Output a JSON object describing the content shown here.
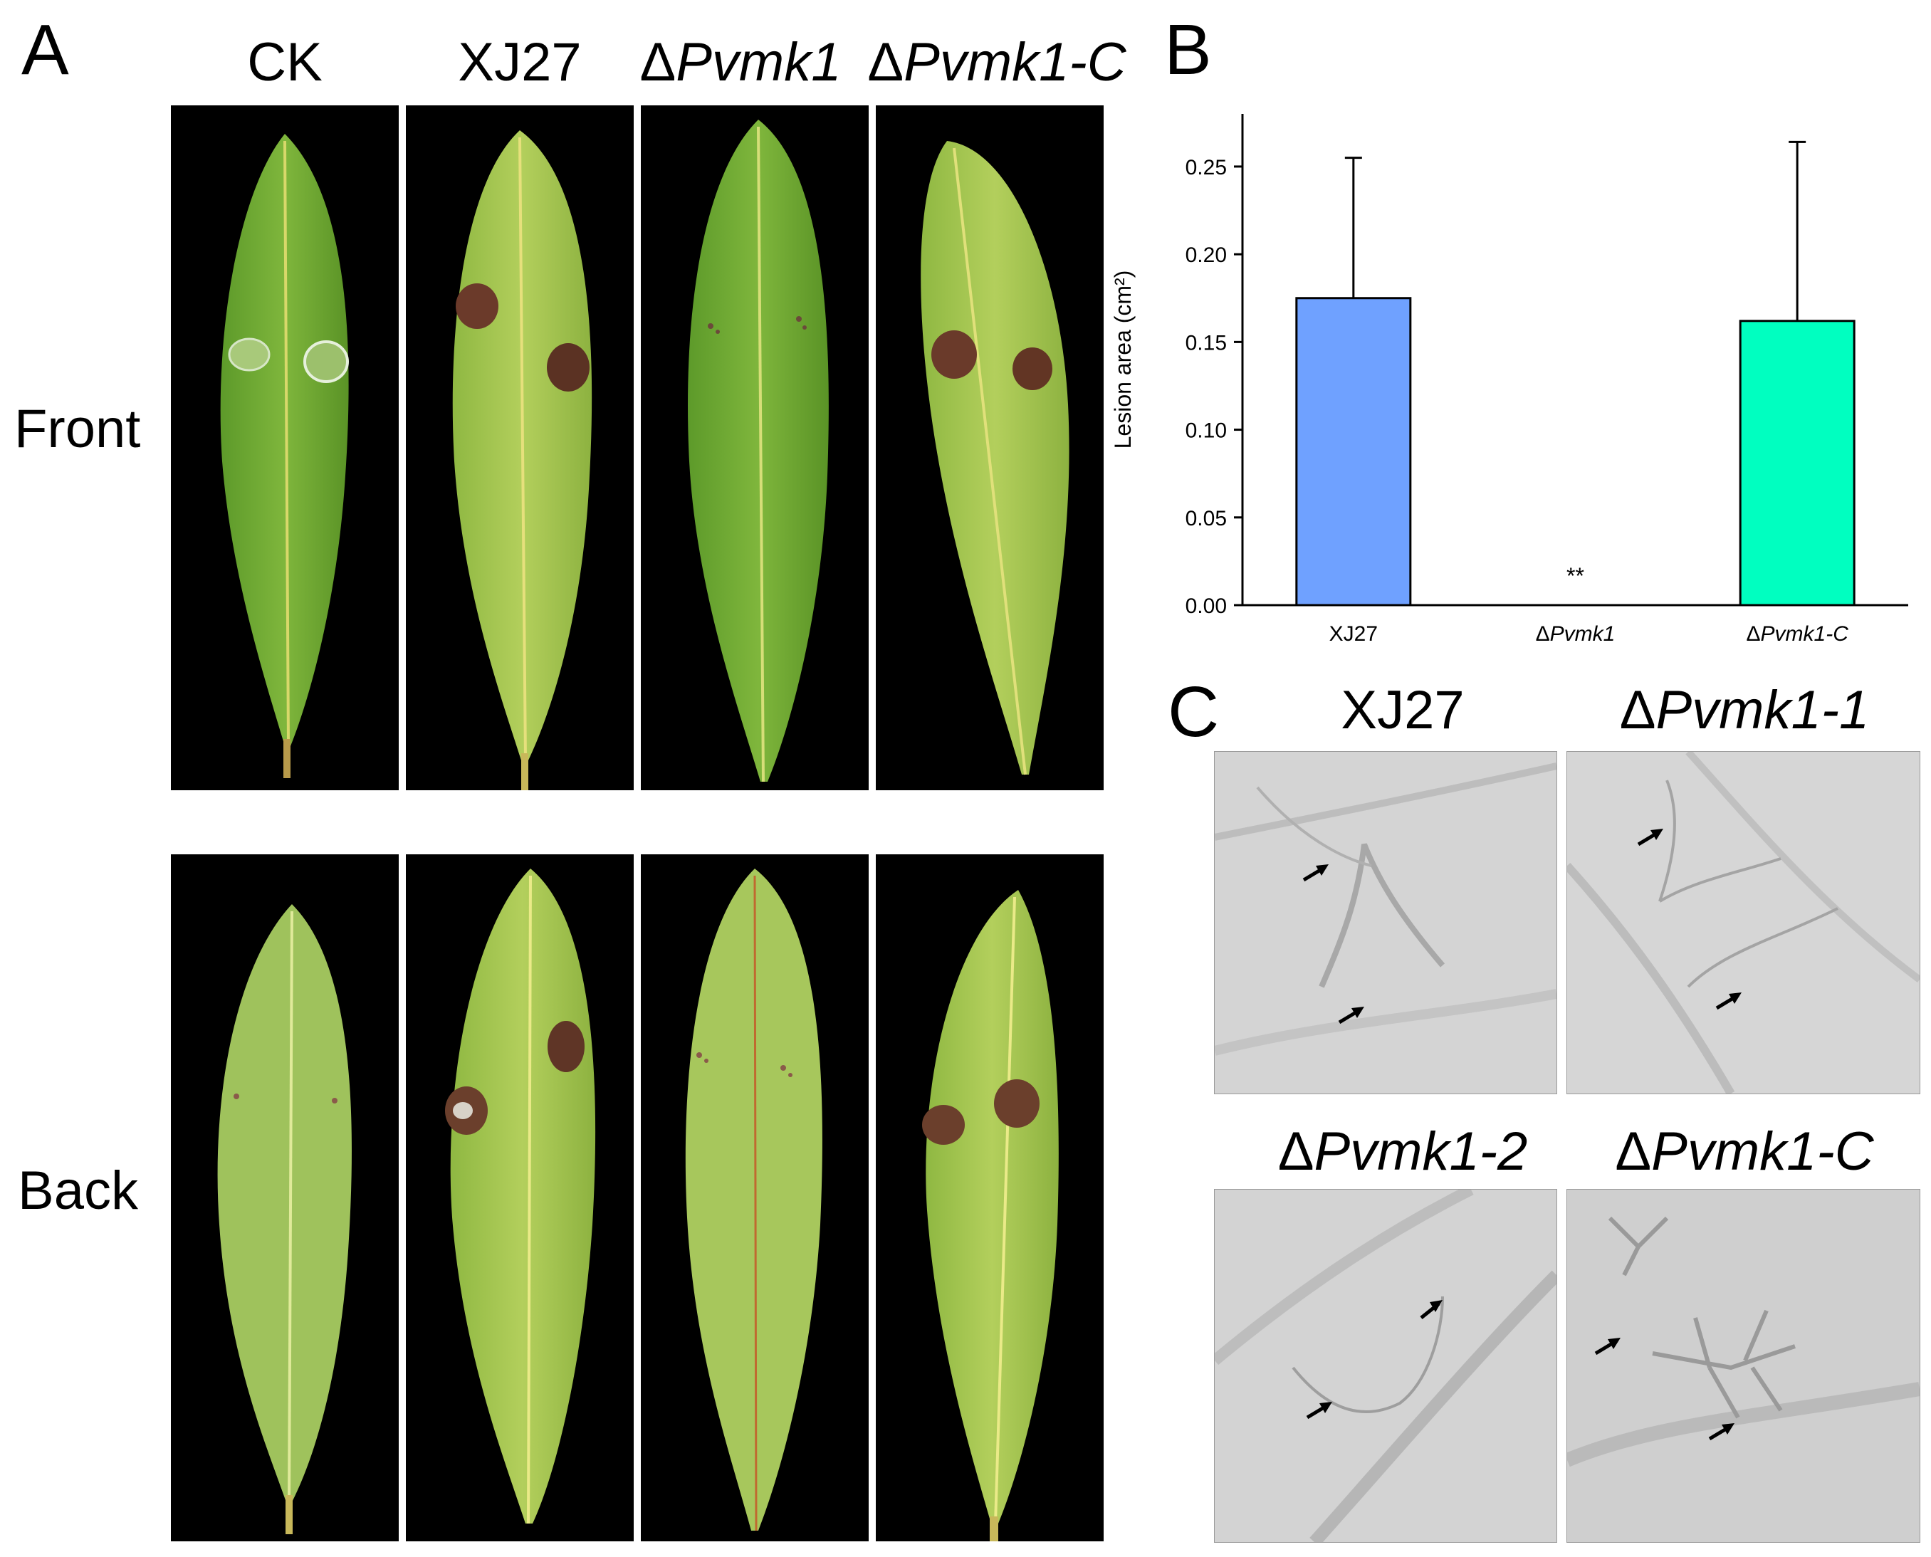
{
  "panels": {
    "a": {
      "letter": "A"
    },
    "b": {
      "letter": "B"
    },
    "c": {
      "letter": "C"
    }
  },
  "panel_a": {
    "columns": [
      {
        "prefix": "",
        "name": "CK"
      },
      {
        "prefix": "",
        "name": "XJ27"
      },
      {
        "prefix": "Δ",
        "name": "Pvmk1"
      },
      {
        "prefix": "Δ",
        "name": "Pvmk1-C"
      }
    ],
    "rows": [
      "Front",
      "Back"
    ]
  },
  "chart_data": {
    "type": "bar",
    "categories": [
      "XJ27",
      "ΔPvmk1",
      "ΔPvmk1-C"
    ],
    "values": [
      0.175,
      0.0,
      0.162
    ],
    "errors": [
      0.08,
      0.0,
      0.102
    ],
    "bar_colors": [
      "#6fa1ff",
      "#ffffff",
      "#00ffc0"
    ],
    "ylabel": "Lesion area (cm²)",
    "ylim": [
      0,
      0.28
    ],
    "yticks": [
      "0.00",
      "0.05",
      "0.10",
      "0.15",
      "0.20",
      "0.25"
    ],
    "annotations": [
      {
        "category": "ΔPvmk1",
        "text": "**"
      }
    ],
    "grid": false
  },
  "panel_c": {
    "titles": [
      {
        "prefix": "",
        "name": "XJ27"
      },
      {
        "prefix": "Δ",
        "name": "Pvmk1-1"
      },
      {
        "prefix": "Δ",
        "name": "Pvmk1-2"
      },
      {
        "prefix": "Δ",
        "name": "Pvmk1-C"
      }
    ]
  }
}
